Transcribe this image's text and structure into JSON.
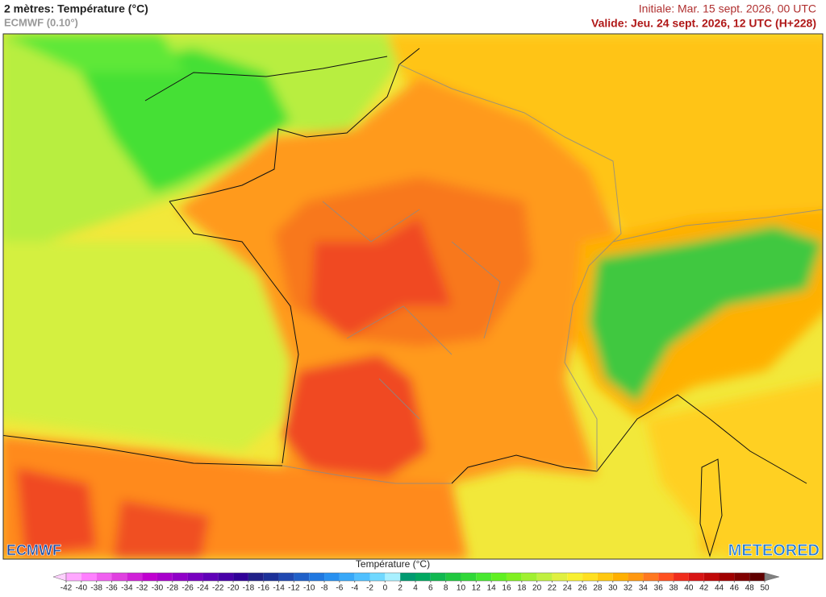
{
  "header": {
    "title": "2 mètres: Température (°C)",
    "model": "ECMWF (0.10°)",
    "initial": "Initiale: Mar. 15 sept. 2026, 00 UTC",
    "valid": "Valide: Jeu. 24 sept. 2026, 12 UTC (H+228)"
  },
  "map": {
    "logos": [
      "ECMWF",
      "METEORED"
    ]
  },
  "colorbar": {
    "title": "Température (°C)",
    "ticks": [
      -42,
      -40,
      -38,
      -36,
      -34,
      -32,
      -30,
      -28,
      -26,
      -24,
      -22,
      -20,
      -18,
      -16,
      -14,
      -12,
      -10,
      -8,
      -6,
      -4,
      -2,
      0,
      2,
      4,
      6,
      8,
      10,
      12,
      14,
      16,
      18,
      20,
      22,
      24,
      26,
      28,
      30,
      32,
      34,
      36,
      38,
      40,
      42,
      44,
      46,
      48,
      50
    ],
    "colors": [
      "#ffd0ff",
      "#ffa8ff",
      "#ff80ff",
      "#f060f0",
      "#e040e0",
      "#d020d8",
      "#c000d0",
      "#a800cc",
      "#9000c8",
      "#7800c0",
      "#6000b8",
      "#4800a8",
      "#300098",
      "#202088",
      "#1c3098",
      "#2048b0",
      "#2060c8",
      "#2078e0",
      "#2890f0",
      "#38a8f8",
      "#50c0ff",
      "#70d8ff",
      "#a8f0ff",
      "#009a70",
      "#00a860",
      "#10b850",
      "#20c840",
      "#30d838",
      "#48e830",
      "#60f020",
      "#80f020",
      "#a0f030",
      "#c0f040",
      "#e0f040",
      "#f8f030",
      "#ffe020",
      "#ffc810",
      "#ffb000",
      "#ff9810",
      "#ff7820",
      "#ff5020",
      "#f02c1c",
      "#d81414",
      "#c00808",
      "#a00000",
      "#800000",
      "#600000",
      "#808080"
    ]
  }
}
